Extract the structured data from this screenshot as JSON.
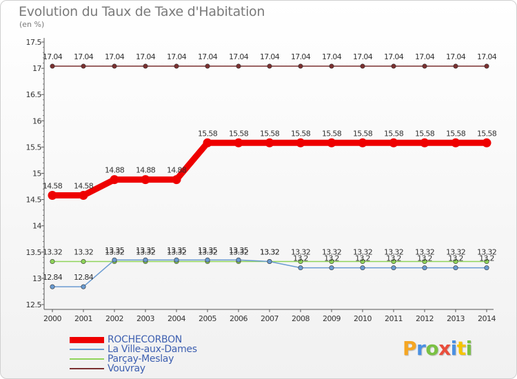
{
  "title": "Evolution du Taux de Taxe d'Habitation",
  "unit_label": "(en %)",
  "logo": {
    "text": "Proxiti",
    "letter_colors": [
      "#f5a623",
      "#4a90e2",
      "#7ac143",
      "#e94e3c",
      "#4a90e2",
      "#f5c400",
      "#7ac143"
    ]
  },
  "chart_data": {
    "type": "line",
    "title": "Evolution du Taux de Taxe d'Habitation",
    "ylabel": "(en %)",
    "xlabel": "",
    "x": [
      "2000",
      "2001",
      "2002",
      "2003",
      "2004",
      "2005",
      "2006",
      "2007",
      "2008",
      "2009",
      "2010",
      "2011",
      "2012",
      "2013",
      "2014"
    ],
    "yticks": [
      "12.5",
      "13",
      "13.5",
      "14",
      "14.5",
      "15",
      "15.5",
      "16",
      "16.5",
      "17",
      "17.5"
    ],
    "ylim": [
      12.5,
      17.5
    ],
    "grid": false,
    "legend_position": "bottom-left",
    "series": [
      {
        "name": "Vouvray",
        "color": "#7a3030",
        "line_width": 1.5,
        "values": [
          17.04,
          17.04,
          17.04,
          17.04,
          17.04,
          17.04,
          17.04,
          17.04,
          17.04,
          17.04,
          17.04,
          17.04,
          17.04,
          17.04,
          17.04
        ],
        "labels": [
          "17.04",
          "17.04",
          "17.04",
          "17.04",
          "17.04",
          "17.04",
          "17.04",
          "17.04",
          "17.04",
          "17.04",
          "17.04",
          "17.04",
          "17.04",
          "17.04",
          "17.04"
        ]
      },
      {
        "name": "Parçay-Meslay",
        "color": "#8fd45a",
        "line_width": 1.5,
        "values": [
          13.32,
          13.32,
          13.32,
          13.32,
          13.32,
          13.32,
          13.32,
          13.32,
          13.32,
          13.32,
          13.32,
          13.32,
          13.32,
          13.32,
          13.32
        ],
        "labels": [
          "13.32",
          "13.32",
          "13.32",
          "13.32",
          "13.32",
          "13.32",
          "13.32",
          "13.32",
          "13.32",
          "13.32",
          "13.32",
          "13.32",
          "13.32",
          "13.32",
          "13.32"
        ]
      },
      {
        "name": "La Ville-aux-Dames",
        "color": "#6a9bd1",
        "line_width": 1.5,
        "values": [
          12.84,
          12.84,
          13.35,
          13.35,
          13.35,
          13.35,
          13.35,
          13.32,
          13.2,
          13.2,
          13.2,
          13.2,
          13.2,
          13.2,
          13.2
        ],
        "labels": [
          "12.84",
          "12.84",
          "13.35",
          "13.35",
          "13.35",
          "13.35",
          "13.35",
          "13.32",
          "13.2",
          "13.2",
          "13.2",
          "13.2",
          "13.2",
          "13.2",
          "13.2"
        ]
      },
      {
        "name": "ROCHECORBON",
        "color": "#ee0000",
        "line_width": 9,
        "values": [
          14.58,
          14.58,
          14.88,
          14.88,
          14.88,
          15.58,
          15.58,
          15.58,
          15.58,
          15.58,
          15.58,
          15.58,
          15.58,
          15.58,
          15.58
        ],
        "labels": [
          "14.58",
          "14.58",
          "14.88",
          "14.88",
          "14.88",
          "15.58",
          "15.58",
          "15.58",
          "15.58",
          "15.58",
          "15.58",
          "15.58",
          "15.58",
          "15.58",
          "15.58"
        ]
      }
    ],
    "legend": [
      "ROCHECORBON",
      "La Ville-aux-Dames",
      "Parçay-Meslay",
      "Vouvray"
    ]
  }
}
